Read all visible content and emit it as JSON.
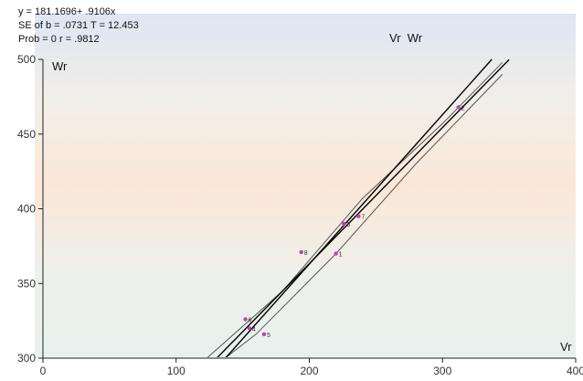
{
  "stats": {
    "line1": "y = 181.1696+ .9106x",
    "line2": "SE of b = .0731     T = 12.453",
    "line3": "Prob   = 0      r = .9812"
  },
  "chart_data": {
    "type": "scatter",
    "title": "Vr  Wr",
    "xlabel": "Vr",
    "ylabel": "Wr",
    "xlim": [
      0,
      400
    ],
    "ylim": [
      300,
      500
    ],
    "x_ticks": [
      0,
      100,
      200,
      300,
      400
    ],
    "y_ticks": [
      300,
      350,
      400,
      450,
      500
    ],
    "grid": false,
    "points": [
      {
        "label": "1",
        "x": 220,
        "y": 370
      },
      {
        "label": "2",
        "x": 312,
        "y": 468
      },
      {
        "label": "3",
        "x": 226,
        "y": 390
      },
      {
        "label": "4",
        "x": 155,
        "y": 320
      },
      {
        "label": "5",
        "x": 166,
        "y": 316
      },
      {
        "label": "6",
        "x": 152,
        "y": 326
      },
      {
        "label": "7",
        "x": 237,
        "y": 395
      },
      {
        "label": "8",
        "x": 194,
        "y": 371
      }
    ],
    "lines": {
      "regression": {
        "intercept": 181.1696,
        "slope": 0.9106
      },
      "upper_band": [
        [
          123,
          300
        ],
        [
          180,
          345
        ],
        [
          240,
          407
        ],
        [
          300,
          457
        ],
        [
          345,
          498
        ]
      ],
      "lower_band": [
        [
          115,
          285
        ],
        [
          160,
          316
        ],
        [
          220,
          370
        ],
        [
          280,
          430
        ],
        [
          345,
          490
        ]
      ],
      "diagonal": [
        [
          137,
          300
        ],
        [
          337,
          500
        ]
      ]
    },
    "colors": {
      "point": "#c040b0",
      "line": "#000000",
      "band": "#555555"
    }
  }
}
